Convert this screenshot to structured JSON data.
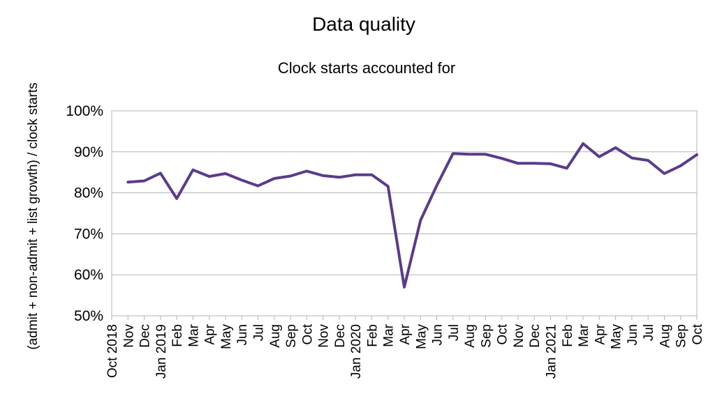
{
  "chart_data": {
    "type": "line",
    "title": "Data quality",
    "subtitle": "Clock starts accounted for",
    "xlabel": "",
    "ylabel": "(admit + non-admit + list growth) / clock starts",
    "ylim": [
      0.5,
      1.0
    ],
    "yticks": [
      "50%",
      "60%",
      "70%",
      "80%",
      "90%",
      "100%"
    ],
    "grid": true,
    "legend": "none",
    "line_color": "#5b3b8c",
    "categories": [
      "Oct 2018",
      "Nov",
      "Dec",
      "Jan 2019",
      "Feb",
      "Mar",
      "Apr",
      "May",
      "Jun",
      "Jul",
      "Aug",
      "Sep",
      "Oct",
      "Nov",
      "Dec",
      "Jan 2020",
      "Feb",
      "Mar",
      "Apr",
      "May",
      "Jun",
      "Jul",
      "Aug",
      "Sep",
      "Oct",
      "Nov",
      "Dec",
      "Jan 2021",
      "Feb",
      "Mar",
      "Apr",
      "May",
      "Jun",
      "Jul",
      "Aug",
      "Sep",
      "Oct"
    ],
    "values": [
      null,
      0.826,
      0.829,
      0.848,
      0.786,
      0.856,
      0.84,
      0.847,
      0.831,
      0.817,
      0.835,
      0.841,
      0.853,
      0.842,
      0.838,
      0.844,
      0.844,
      0.816,
      0.57,
      0.733,
      0.818,
      0.896,
      0.894,
      0.894,
      0.884,
      0.872,
      0.872,
      0.871,
      0.86,
      0.92,
      0.888,
      0.91,
      0.885,
      0.879,
      0.847,
      0.866,
      0.893
    ]
  }
}
